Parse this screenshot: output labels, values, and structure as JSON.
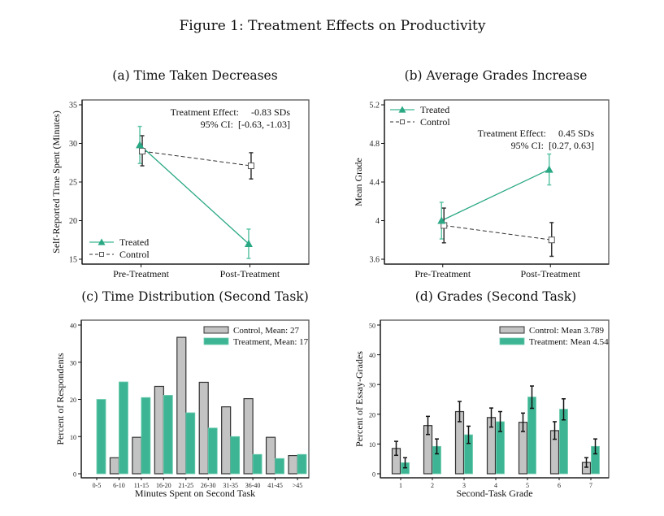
{
  "figure_title": "Figure 1: Treatment Effects on Productivity",
  "colors": {
    "treated": "#2aa884",
    "treated_light": "#3db594",
    "control_fill": "#c3c3c3",
    "control_edge": "#333333",
    "axis": "#222222"
  },
  "chart_data": [
    {
      "id": "a",
      "type": "line",
      "title": "(a) Time Taken Decreases",
      "xlabel": "",
      "ylabel": "Self-Reported Time Spent (Minutes)",
      "categories": [
        "Pre-Treatment",
        "Post-Treatment"
      ],
      "ylim": [
        15,
        35
      ],
      "yticks": [
        15,
        20,
        25,
        30,
        35
      ],
      "ytick_labels": [
        "15",
        "20",
        "25",
        "30",
        "35"
      ],
      "legend_position": "bottom-left",
      "series": [
        {
          "name": "Treated",
          "marker": "triangle",
          "values": [
            29.8,
            17.0
          ],
          "ci_low": [
            27.4,
            15.1
          ],
          "ci_high": [
            32.2,
            18.9
          ]
        },
        {
          "name": "Control",
          "marker": "square",
          "values": [
            29.0,
            27.1
          ],
          "ci_low": [
            27.1,
            25.4
          ],
          "ci_high": [
            31.0,
            28.8
          ]
        }
      ],
      "annotation": [
        "Treatment Effect:     -0.83 SDs",
        "95% CI:  [-0.63, -1.03]"
      ]
    },
    {
      "id": "b",
      "type": "line",
      "title": "(b) Average Grades Increase",
      "xlabel": "",
      "ylabel": "Mean Grade",
      "categories": [
        "Pre-Treatment",
        "Post-Treatment"
      ],
      "ylim": [
        3.6,
        5.2
      ],
      "yticks": [
        3.6,
        4.0,
        4.4,
        4.8,
        5.2
      ],
      "ytick_labels": [
        "3.6",
        "4",
        "4.4",
        "4.8",
        "5.2"
      ],
      "legend_position": "top-left",
      "series": [
        {
          "name": "Treated",
          "marker": "triangle",
          "values": [
            4.0,
            4.53
          ],
          "ci_low": [
            3.81,
            4.37
          ],
          "ci_high": [
            4.19,
            4.69
          ]
        },
        {
          "name": "Control",
          "marker": "square",
          "values": [
            3.95,
            3.8
          ],
          "ci_low": [
            3.77,
            3.63
          ],
          "ci_high": [
            4.13,
            3.98
          ]
        }
      ],
      "annotation": [
        "Treatment Effect:     0.45 SDs",
        "95% CI:  [0.27, 0.63]"
      ]
    },
    {
      "id": "c",
      "type": "bar",
      "title": "(c) Time Distribution (Second Task)",
      "xlabel": "Minutes Spent on Second Task",
      "ylabel": "Percent of Respondents",
      "categories": [
        "0-5",
        "6-10",
        "11-15",
        "16-20",
        "21-25",
        "26-30",
        "31-35",
        "36-40",
        "41-45",
        ">45"
      ],
      "ylim": [
        0,
        40
      ],
      "yticks": [
        0,
        10,
        20,
        30,
        40
      ],
      "ytick_labels": [
        "0",
        "10",
        "20",
        "30",
        "40"
      ],
      "legend_position": "top-right",
      "series": [
        {
          "name": "Control, Mean: 27",
          "values": [
            0,
            4.3,
            9.8,
            23.5,
            36.7,
            24.6,
            18.0,
            20.2,
            9.8,
            4.9
          ]
        },
        {
          "name": "Treatment, Mean: 17",
          "values": [
            20.0,
            24.7,
            20.5,
            21.1,
            16.4,
            12.3,
            10.0,
            5.2,
            4.1,
            5.2
          ]
        }
      ]
    },
    {
      "id": "d",
      "type": "bar",
      "title": "(d) Grades (Second Task)",
      "xlabel": "Second-Task Grade",
      "ylabel": "Percent of Essay-Grades",
      "categories": [
        "1",
        "2",
        "3",
        "4",
        "5",
        "6",
        "7"
      ],
      "ylim": [
        0,
        50
      ],
      "yticks": [
        0,
        10,
        20,
        30,
        40,
        50
      ],
      "ytick_labels": [
        "0",
        "10",
        "20",
        "30",
        "40",
        "50"
      ],
      "legend_position": "top-right",
      "series": [
        {
          "name": "Control: Mean 3.789",
          "values": [
            8.5,
            16.2,
            20.9,
            18.9,
            17.3,
            14.5,
            3.8
          ],
          "ci_low": [
            6.2,
            13.2,
            17.5,
            15.7,
            14.2,
            11.6,
            2.2
          ],
          "ci_high": [
            10.9,
            19.3,
            24.3,
            22.1,
            20.4,
            17.5,
            5.4
          ]
        },
        {
          "name": "Treatment: Mean 4.54",
          "values": [
            3.7,
            9.2,
            13.1,
            17.5,
            25.8,
            21.7,
            9.2
          ],
          "ci_low": [
            2.0,
            6.7,
            10.2,
            14.2,
            22.0,
            18.1,
            6.7
          ],
          "ci_high": [
            5.4,
            11.7,
            16.0,
            20.9,
            29.5,
            25.2,
            11.7
          ]
        }
      ]
    }
  ]
}
